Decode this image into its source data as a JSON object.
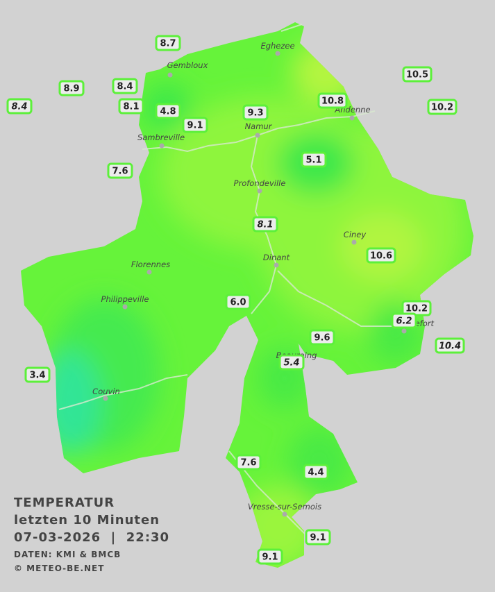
{
  "title": {
    "line1": "TEMPERATUR",
    "line2": "letzten 10 Minuten",
    "line3": "07-03-2026  |  22:30",
    "source": "DATEN: KMI & BMCB",
    "copyright": "© METEO-BE.NET"
  },
  "places": [
    "Eghezee",
    "Gembloux",
    "Andenne",
    "Namur",
    "Sambreville",
    "Profondeville",
    "Ciney",
    "Dinant",
    "Florennes",
    "Philippeville",
    "Rochefort",
    "Beauraing",
    "Couvin",
    "Vresse-sur-Semois"
  ],
  "stations": [
    "8.7",
    "10.5",
    "8.9",
    "8.4",
    "8.4",
    "8.1",
    "4.8",
    "9.3",
    "10.8",
    "10.2",
    "9.1",
    "7.6",
    "5.1",
    "8.1",
    "10.6",
    "6.0",
    "10.2",
    "6.2",
    "9.6",
    "10.4",
    "5.4",
    "3.4",
    "7.6",
    "4.4",
    "9.1",
    "9.1"
  ]
}
